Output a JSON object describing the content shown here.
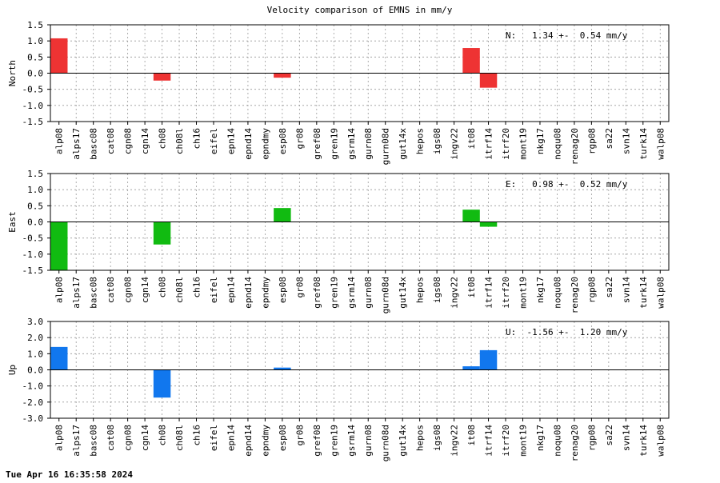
{
  "page": {
    "timestamp": "Tue Apr 16 16:35:58 2024"
  },
  "chart_data": [
    {
      "type": "bar",
      "title": "Velocity comparison of EMNS in mm/y",
      "ylabel": "North",
      "ylim": [
        -1.5,
        1.5
      ],
      "yticks": [
        "1.5",
        "1.0",
        "0.5",
        "0.0",
        "-0.5",
        "-1.0",
        "-1.5"
      ],
      "annotation": "N:   1.34 +-  0.54 mm/y",
      "color": "#ee3333",
      "grid": true,
      "categories": [
        "alp08",
        "alps17",
        "basc08",
        "cat08",
        "cgn08",
        "cgn14",
        "ch08",
        "ch08l",
        "ch16",
        "eifel",
        "epn14",
        "epnd14",
        "epndmy",
        "esp08",
        "gr08",
        "gref08",
        "gren19",
        "gsrm14",
        "gurn08",
        "gurn08d",
        "gut14x",
        "hepos",
        "igs08",
        "ingv22",
        "it08",
        "itrf14",
        "itrf20",
        "mont19",
        "nkg17",
        "noqu08",
        "renag20",
        "rgp08",
        "sa22",
        "svn14",
        "turk14",
        "walp08"
      ],
      "values": [
        1.08,
        0,
        0,
        0,
        0,
        0,
        -0.23,
        0,
        0,
        0,
        0,
        0,
        0,
        -0.14,
        0,
        0,
        0,
        0,
        0,
        0,
        0,
        0,
        0,
        0,
        0.78,
        -0.45,
        0,
        0,
        0,
        0,
        0,
        0,
        0,
        0,
        0,
        0
      ]
    },
    {
      "type": "bar",
      "title": "",
      "ylabel": "East",
      "ylim": [
        -1.5,
        1.5
      ],
      "yticks": [
        "1.5",
        "1.0",
        "0.5",
        "0.0",
        "-0.5",
        "-1.0",
        "-1.5"
      ],
      "annotation": "E:   0.98 +-  0.52 mm/y",
      "color": "#11bb11",
      "grid": true,
      "categories": [
        "alp08",
        "alps17",
        "basc08",
        "cat08",
        "cgn08",
        "cgn14",
        "ch08",
        "ch08l",
        "ch16",
        "eifel",
        "epn14",
        "epnd14",
        "epndmy",
        "esp08",
        "gr08",
        "gref08",
        "gren19",
        "gsrm14",
        "gurn08",
        "gurn08d",
        "gut14x",
        "hepos",
        "igs08",
        "ingv22",
        "it08",
        "itrf14",
        "itrf20",
        "mont19",
        "nkg17",
        "noqu08",
        "renag20",
        "rgp08",
        "sa22",
        "svn14",
        "turk14",
        "walp08"
      ],
      "values": [
        -1.5,
        0,
        0,
        0,
        0,
        0,
        -0.7,
        0,
        0,
        0,
        0,
        0,
        0,
        0.43,
        0,
        0,
        0,
        0,
        0,
        0,
        0,
        0,
        0,
        0,
        0.38,
        -0.15,
        0,
        0,
        0,
        0,
        0,
        0,
        0,
        0,
        0,
        0
      ]
    },
    {
      "type": "bar",
      "title": "",
      "ylabel": "Up",
      "ylim": [
        -3.0,
        3.0
      ],
      "yticks": [
        "3.0",
        "2.0",
        "1.0",
        "0.0",
        "-1.0",
        "-2.0",
        "-3.0"
      ],
      "annotation": "U:  -1.56 +-  1.20 mm/y",
      "color": "#1177ee",
      "grid": true,
      "categories": [
        "alp08",
        "alps17",
        "basc08",
        "cat08",
        "cgn08",
        "cgn14",
        "ch08",
        "ch08l",
        "ch16",
        "eifel",
        "epn14",
        "epnd14",
        "epndmy",
        "esp08",
        "gr08",
        "gref08",
        "gren19",
        "gsrm14",
        "gurn08",
        "gurn08d",
        "gut14x",
        "hepos",
        "igs08",
        "ingv22",
        "it08",
        "itrf14",
        "itrf20",
        "mont19",
        "nkg17",
        "noqu08",
        "renag20",
        "rgp08",
        "sa22",
        "svn14",
        "turk14",
        "walp08"
      ],
      "values": [
        1.42,
        0,
        0,
        0,
        0,
        0,
        -1.72,
        0,
        0,
        0,
        0,
        0,
        0,
        0.14,
        0,
        0,
        0,
        0,
        0,
        0,
        0,
        0,
        0,
        0,
        0.22,
        1.22,
        0,
        0,
        0,
        0,
        0,
        0,
        0,
        0,
        0,
        0
      ]
    }
  ]
}
